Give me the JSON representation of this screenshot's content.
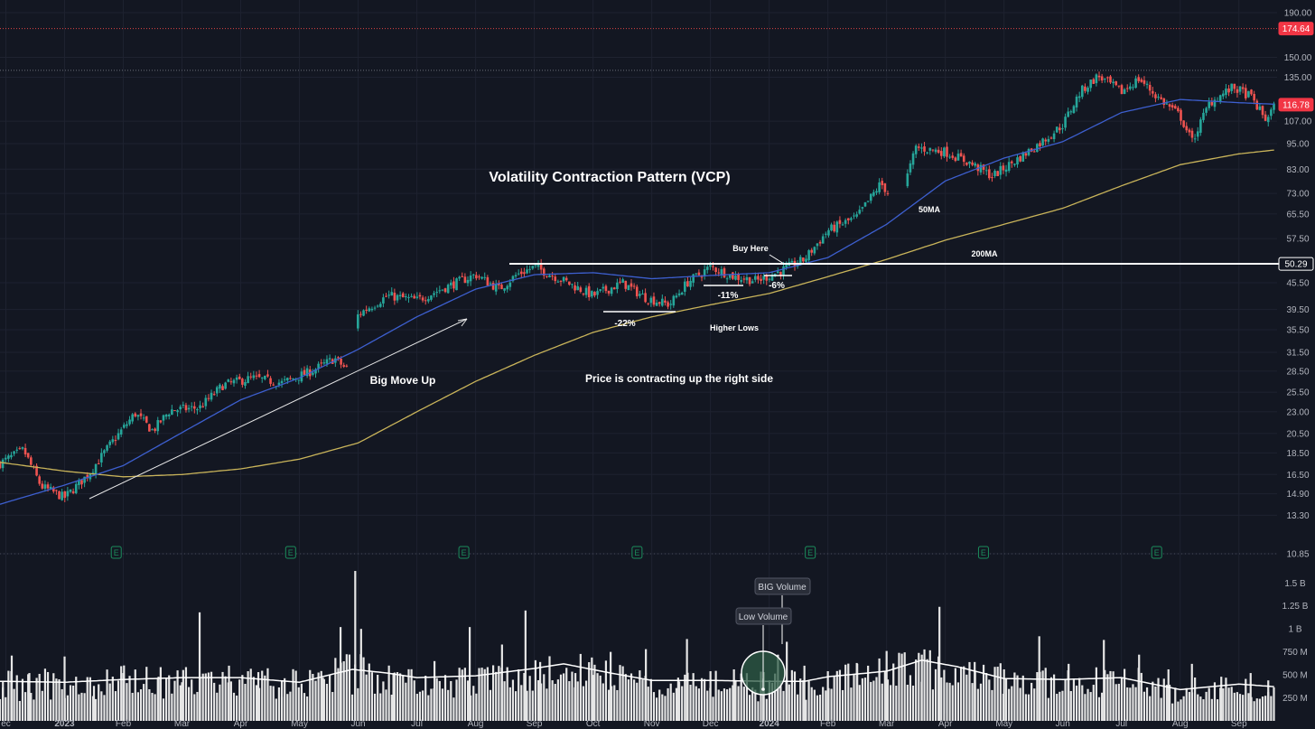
{
  "chart_data": {
    "type": "candlestick",
    "price_axis": {
      "scale": "log",
      "ticks": [
        "190.00",
        "150.00",
        "135.00",
        "107.00",
        "95.00",
        "83.00",
        "73.00",
        "65.50",
        "57.50",
        "45.50",
        "39.50",
        "35.50",
        "31.50",
        "28.50",
        "25.50",
        "23.00",
        "20.50",
        "18.50",
        "16.50",
        "14.90",
        "13.30",
        "10.85"
      ],
      "tick_values": [
        190,
        150,
        135,
        107,
        95,
        83,
        73,
        65.5,
        57.5,
        45.5,
        39.5,
        35.5,
        31.5,
        28.5,
        25.5,
        23,
        20.5,
        18.5,
        16.5,
        14.9,
        13.3,
        10.85
      ],
      "range": [
        10.85,
        190
      ]
    },
    "volume_axis": {
      "ticks": [
        "1.5 B",
        "1.25 B",
        "1 B",
        "750 M",
        "500 M",
        "250 M"
      ],
      "tick_values": [
        1500,
        1250,
        1000,
        750,
        500,
        250
      ],
      "range": [
        0,
        1650
      ],
      "unit": "M"
    },
    "time_axis": {
      "labels": [
        "ec",
        "2023",
        "Feb",
        "Mar",
        "Apr",
        "May",
        "Jun",
        "Jul",
        "Aug",
        "Sep",
        "Oct",
        "Nov",
        "Dec",
        "2024",
        "Feb",
        "Mar",
        "Apr",
        "May",
        "Jun",
        "Jul",
        "Aug",
        "Sep"
      ],
      "label_months": [
        -1,
        0,
        1,
        2,
        3,
        4,
        5,
        6,
        7,
        8,
        9,
        10,
        11,
        12,
        13,
        14,
        15,
        16,
        17,
        18,
        19,
        20
      ],
      "bold": [
        "2023",
        "2024"
      ],
      "month_range": [
        -1.1,
        20.65
      ]
    },
    "price_badges": [
      {
        "label": "174.64",
        "value": 174.64,
        "color": "#f23645"
      },
      {
        "label": "116.78",
        "value": 116.78,
        "color": "#f23645"
      },
      {
        "label": "50.29",
        "value": 50.29,
        "color": "#ffffff"
      }
    ],
    "reference_levels": [
      174.64,
      140,
      50.29
    ],
    "ma50_points": [
      [
        -1.1,
        14.1
      ],
      [
        0,
        15.6
      ],
      [
        1,
        17.3
      ],
      [
        2,
        20.6
      ],
      [
        3,
        24.5
      ],
      [
        4,
        27.5
      ],
      [
        5,
        32
      ],
      [
        6,
        38
      ],
      [
        7,
        44
      ],
      [
        8,
        47.5
      ],
      [
        9,
        48
      ],
      [
        10,
        46.5
      ],
      [
        11,
        47.3
      ],
      [
        12,
        48
      ],
      [
        13,
        52
      ],
      [
        14,
        62
      ],
      [
        15,
        78
      ],
      [
        16,
        88
      ],
      [
        17,
        96
      ],
      [
        18,
        112
      ],
      [
        19,
        120
      ],
      [
        20,
        118
      ],
      [
        20.65,
        117
      ]
    ],
    "ma200_points": [
      [
        -1.1,
        17.6
      ],
      [
        0,
        16.8
      ],
      [
        1,
        16.3
      ],
      [
        2,
        16.5
      ],
      [
        3,
        17.0
      ],
      [
        4,
        17.9
      ],
      [
        5,
        19.5
      ],
      [
        6,
        23
      ],
      [
        7,
        27
      ],
      [
        8,
        31
      ],
      [
        9,
        35
      ],
      [
        10,
        38
      ],
      [
        11,
        40.5
      ],
      [
        12,
        43
      ],
      [
        13,
        47
      ],
      [
        14,
        51.5
      ],
      [
        15,
        57
      ],
      [
        16,
        62
      ],
      [
        17,
        67.5
      ],
      [
        18,
        76
      ],
      [
        19,
        85
      ],
      [
        20,
        90
      ],
      [
        20.65,
        92
      ]
    ],
    "price_points": [
      [
        -1.1,
        17.5
      ],
      [
        -0.7,
        18.8
      ],
      [
        -0.4,
        15.5
      ],
      [
        0,
        14.6
      ],
      [
        0.4,
        16.5
      ],
      [
        0.8,
        19.5
      ],
      [
        1.2,
        22.8
      ],
      [
        1.5,
        20.8
      ],
      [
        1.8,
        23.2
      ],
      [
        2.3,
        23.5
      ],
      [
        2.7,
        26.5
      ],
      [
        3.2,
        27.5
      ],
      [
        3.7,
        26.8
      ],
      [
        4.2,
        28.5
      ],
      [
        4.6,
        30.5
      ],
      [
        4.8,
        28.8
      ],
      [
        5.0,
        38.5
      ],
      [
        5.5,
        42.5
      ],
      [
        6.0,
        41.5
      ],
      [
        6.5,
        44.5
      ],
      [
        7.0,
        47.5
      ],
      [
        7.4,
        44
      ],
      [
        7.7,
        47.5
      ],
      [
        8.0,
        49.5
      ],
      [
        8.5,
        46
      ],
      [
        9.0,
        42.5
      ],
      [
        9.5,
        45.5
      ],
      [
        9.9,
        42
      ],
      [
        10.3,
        40.5
      ],
      [
        10.6,
        45.5
      ],
      [
        11.0,
        49.5
      ],
      [
        11.4,
        47
      ],
      [
        11.8,
        46
      ],
      [
        12.2,
        48.5
      ],
      [
        12.6,
        51.5
      ],
      [
        13.0,
        60
      ],
      [
        13.5,
        64.5
      ],
      [
        13.9,
        77
      ],
      [
        14.2,
        68.5
      ],
      [
        14.5,
        93
      ],
      [
        15.0,
        91
      ],
      [
        15.4,
        86
      ],
      [
        15.8,
        80
      ],
      [
        16.2,
        87
      ],
      [
        16.6,
        95
      ],
      [
        17.0,
        105
      ],
      [
        17.3,
        125
      ],
      [
        17.6,
        136
      ],
      [
        18.0,
        125
      ],
      [
        18.3,
        134
      ],
      [
        18.6,
        122
      ],
      [
        19.0,
        110
      ],
      [
        19.2,
        96
      ],
      [
        19.5,
        118
      ],
      [
        19.9,
        128
      ],
      [
        20.2,
        122
      ],
      [
        20.45,
        108
      ],
      [
        20.65,
        118
      ]
    ],
    "volume_bars": [
      [
        -1.05,
        430
      ],
      [
        -0.9,
        710
      ],
      [
        -0.6,
        520
      ],
      [
        0,
        700
      ],
      [
        0.5,
        380
      ],
      [
        1,
        520
      ],
      [
        1.6,
        480
      ],
      [
        2.0,
        420
      ],
      [
        2.3,
        1180
      ],
      [
        2.8,
        600
      ],
      [
        3.3,
        530
      ],
      [
        3.7,
        440
      ],
      [
        4.4,
        470
      ],
      [
        4.7,
        1020
      ],
      [
        4.95,
        1630
      ],
      [
        5.05,
        1000
      ],
      [
        5.6,
        520
      ],
      [
        6.3,
        650
      ],
      [
        6.9,
        1020
      ],
      [
        7.45,
        830
      ],
      [
        7.85,
        1200
      ],
      [
        8.1,
        640
      ],
      [
        8.7,
        520
      ],
      [
        9.0,
        500
      ],
      [
        9.3,
        750
      ],
      [
        9.9,
        780
      ],
      [
        10.45,
        470
      ],
      [
        10.6,
        890
      ],
      [
        11.0,
        540
      ],
      [
        11.4,
        560
      ],
      [
        11.9,
        460
      ],
      [
        12.15,
        720
      ],
      [
        12.3,
        860
      ],
      [
        12.6,
        600
      ],
      [
        13.0,
        540
      ],
      [
        13.5,
        620
      ],
      [
        14.0,
        760
      ],
      [
        14.6,
        720
      ],
      [
        14.9,
        1240
      ],
      [
        15.5,
        640
      ],
      [
        16.0,
        560
      ],
      [
        16.6,
        920
      ],
      [
        17.1,
        620
      ],
      [
        17.7,
        880
      ],
      [
        18.3,
        720
      ],
      [
        18.8,
        560
      ],
      [
        19.2,
        620
      ],
      [
        19.7,
        480
      ],
      [
        20.2,
        520
      ],
      [
        20.5,
        440
      ]
    ],
    "volume_density": {
      "base": 420,
      "spread": 180
    },
    "volume_ma_points": [
      [
        -1.1,
        430
      ],
      [
        0,
        420
      ],
      [
        1,
        450
      ],
      [
        2,
        470
      ],
      [
        3,
        470
      ],
      [
        4,
        420
      ],
      [
        4.9,
        560
      ],
      [
        5.5,
        520
      ],
      [
        6,
        470
      ],
      [
        7,
        490
      ],
      [
        8,
        570
      ],
      [
        8.5,
        620
      ],
      [
        9.3,
        520
      ],
      [
        10,
        440
      ],
      [
        11,
        440
      ],
      [
        12,
        430
      ],
      [
        12.6,
        430
      ],
      [
        13,
        480
      ],
      [
        14,
        540
      ],
      [
        14.6,
        660
      ],
      [
        15.2,
        590
      ],
      [
        16,
        460
      ],
      [
        17,
        450
      ],
      [
        18,
        470
      ],
      [
        19,
        340
      ],
      [
        20,
        400
      ],
      [
        20.65,
        370
      ]
    ],
    "earnings_marker": {
      "label": "E",
      "months": [
        0.88,
        3.85,
        6.8,
        9.75,
        12.7,
        15.65,
        18.6
      ]
    },
    "annotations": {
      "title": "Volatility Contraction Pattern (VCP)",
      "big_move_up": "Big Move Up",
      "price_contracting": "Price is contracting up the right side",
      "higher_lows": "Higher Lows",
      "buy_here": "Buy Here",
      "ma50_label": "50MA",
      "ma200_label": "200MA",
      "contraction_1": "-22%",
      "contraction_2": "-11%",
      "contraction_3": "-6%",
      "big_volume": "BIG Volume",
      "low_volume": "Low Volume"
    },
    "colors": {
      "background": "#131722",
      "up": "#26a69a",
      "down": "#ef5350",
      "ma50": "#3d5fcf",
      "ma200": "#c9b45a",
      "volume": "#e6e6e6",
      "volume_ma": "#ffffff",
      "earnings": "#1b8d5c",
      "low_volume_circle": "#2e5c46",
      "reference_line": "#ffffff",
      "top_line": "#e04444"
    }
  }
}
